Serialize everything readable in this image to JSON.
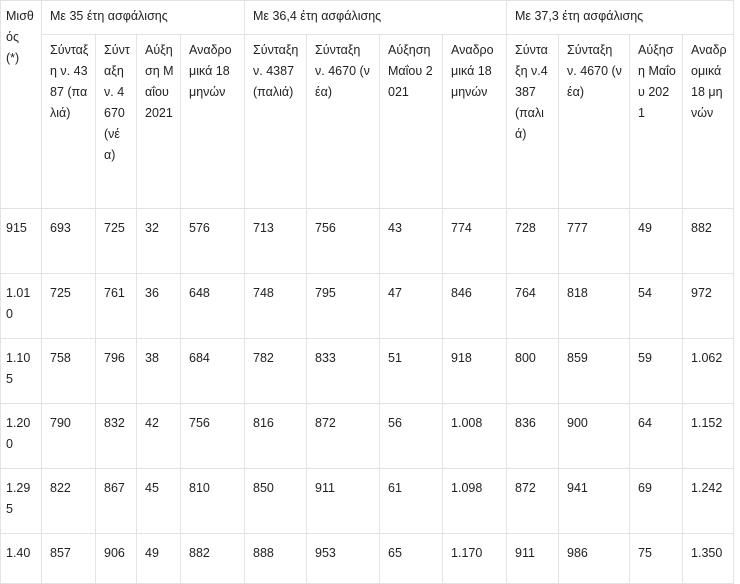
{
  "groups": {
    "salary_label": "Μισθός (*)",
    "g35": "Με 35 έτη ασφάλισης",
    "g36": "Με 36,4 έτη ασφάλισης",
    "g37": "Με 37,3 έτη ασφάλισης"
  },
  "subheaders": [
    "Σύνταξη ν. 4387 (παλιά)",
    "Σύνταξη ν. 4670 (νέα)",
    "Αύξηση Μαΐου 2021",
    "Αναδρομικά 18 μηνών",
    "Σύνταξη ν. 4387 (παλιά)",
    "Σύνταξη ν. 4670 (νέα)",
    "Αύξηση Μαΐου 2021",
    "Αναδρομικά 18 μηνών",
    "Σύνταξη ν.4387 (παλιά)",
    "Σύνταξη ν. 4670 (νέα)",
    "Αύξηση Μαΐου 2021",
    "Αναδρομικά 18 μηνών"
  ],
  "rows": [
    [
      "915",
      "693",
      "725",
      "32",
      "576",
      "713",
      "756",
      "43",
      "774",
      "728",
      "777",
      "49",
      "882"
    ],
    [
      "1.010",
      "725",
      "761",
      "36",
      "648",
      "748",
      "795",
      "47",
      "846",
      "764",
      "818",
      "54",
      "972"
    ],
    [
      "1.105",
      "758",
      "796",
      "38",
      "684",
      "782",
      "833",
      "51",
      "918",
      "800",
      "859",
      "59",
      "1.062"
    ],
    [
      "1.200",
      "790",
      "832",
      "42",
      "756",
      "816",
      "872",
      "56",
      "1.008",
      "836",
      "900",
      "64",
      "1.152"
    ],
    [
      "1.295",
      "822",
      "867",
      "45",
      "810",
      "850",
      "911",
      "61",
      "1.098",
      "872",
      "941",
      "69",
      "1.242"
    ],
    [
      "1.40",
      "857",
      "906",
      "49",
      "882",
      "888",
      "953",
      "65",
      "1.170",
      "911",
      "986",
      "75",
      "1.350"
    ]
  ]
}
